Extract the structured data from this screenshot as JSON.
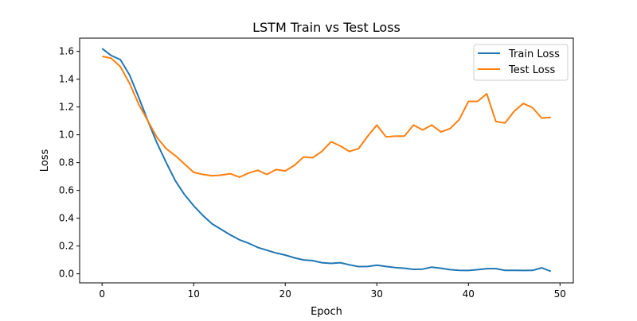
{
  "chart_data": {
    "type": "line",
    "title": "LSTM Train vs Test Loss",
    "xlabel": "Epoch",
    "ylabel": "Loss",
    "xlim": [
      -2.45,
      51.45
    ],
    "ylim": [
      -0.065,
      1.695
    ],
    "xticks": [
      0,
      10,
      20,
      30,
      40,
      50
    ],
    "yticks": [
      0.0,
      0.2,
      0.4,
      0.6,
      0.8,
      1.0,
      1.2,
      1.4,
      1.6
    ],
    "grid": false,
    "legend_position": "top-right",
    "x": [
      0,
      1,
      2,
      3,
      4,
      5,
      6,
      7,
      8,
      9,
      10,
      11,
      12,
      13,
      14,
      15,
      16,
      17,
      18,
      19,
      20,
      21,
      22,
      23,
      24,
      25,
      26,
      27,
      28,
      29,
      30,
      31,
      32,
      33,
      34,
      35,
      36,
      37,
      38,
      39,
      40,
      41,
      42,
      43,
      44,
      45,
      46,
      47,
      48,
      49
    ],
    "series": [
      {
        "name": "Train Loss",
        "color": "#1f77b4",
        "values": [
          1.62,
          1.57,
          1.54,
          1.43,
          1.27,
          1.1,
          0.94,
          0.8,
          0.67,
          0.57,
          0.49,
          0.42,
          0.36,
          0.32,
          0.28,
          0.245,
          0.22,
          0.19,
          0.17,
          0.15,
          0.135,
          0.115,
          0.1,
          0.095,
          0.08,
          0.075,
          0.08,
          0.065,
          0.052,
          0.053,
          0.062,
          0.053,
          0.045,
          0.04,
          0.032,
          0.034,
          0.048,
          0.04,
          0.03,
          0.025,
          0.024,
          0.03,
          0.037,
          0.037,
          0.025,
          0.025,
          0.024,
          0.025,
          0.043,
          0.018
        ]
      },
      {
        "name": "Test Loss",
        "color": "#ff7f0e",
        "values": [
          1.565,
          1.55,
          1.49,
          1.37,
          1.22,
          1.1,
          0.98,
          0.9,
          0.85,
          0.79,
          0.73,
          0.715,
          0.705,
          0.71,
          0.72,
          0.695,
          0.725,
          0.745,
          0.715,
          0.75,
          0.74,
          0.78,
          0.84,
          0.835,
          0.88,
          0.95,
          0.92,
          0.88,
          0.9,
          0.99,
          1.07,
          0.985,
          0.99,
          0.99,
          1.07,
          1.035,
          1.07,
          1.02,
          1.045,
          1.11,
          1.24,
          1.24,
          1.295,
          1.095,
          1.085,
          1.17,
          1.225,
          1.195,
          1.12,
          1.125
        ]
      }
    ]
  }
}
